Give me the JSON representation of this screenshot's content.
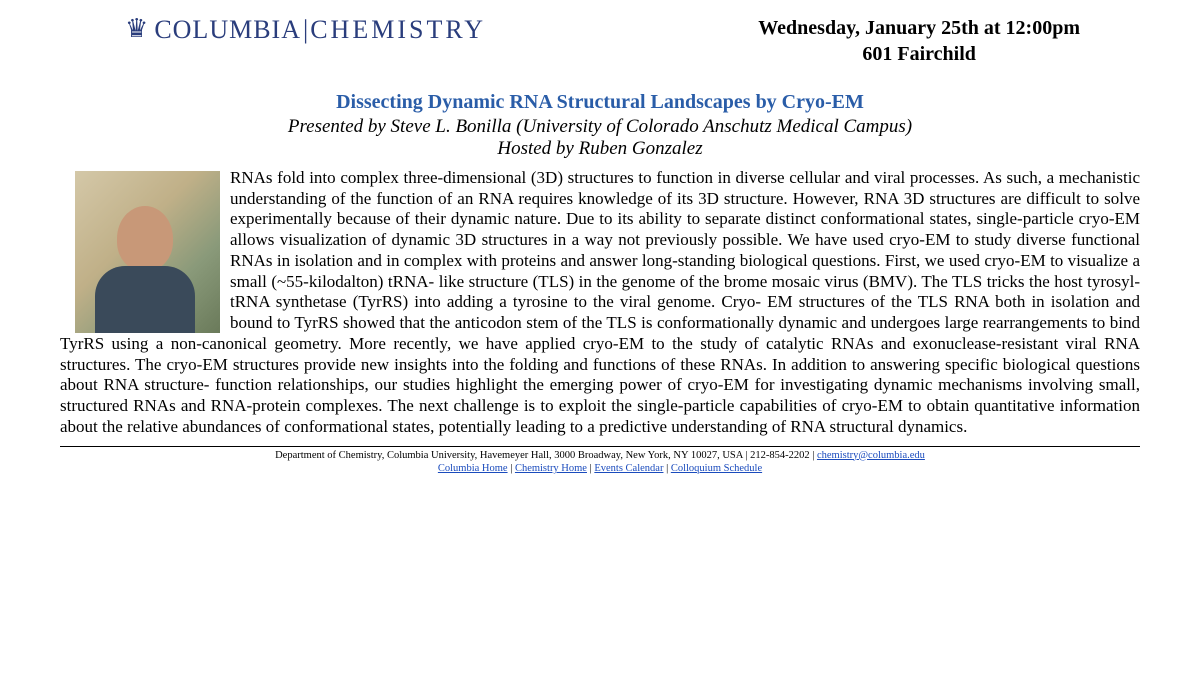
{
  "header": {
    "logo_part1": "COLUMBIA",
    "logo_part2": "CHEMISTRY",
    "date_line": "Wednesday, January 25th at 12:00pm",
    "room_line": "601 Fairchild"
  },
  "talk": {
    "title": "Dissecting Dynamic RNA Structural Landscapes by Cryo-EM",
    "presenter": "Presented by Steve L. Bonilla (University of Colorado Anschutz Medical Campus)",
    "host": "Hosted by Ruben Gonzalez",
    "abstract": "RNAs fold into complex three-dimensional (3D) structures to function in diverse cellular and viral processes. As such, a mechanistic understanding of the function of an RNA requires knowledge of its 3D structure. However, RNA 3D structures are difficult to solve experimentally because of their dynamic nature. Due to its ability to separate distinct conformational states, single-particle cryo-EM allows visualization of dynamic 3D structures in a way not previously possible. We have used cryo-EM to study diverse functional RNAs in isolation and in complex with proteins and answer long-standing biological questions. First, we used cryo-EM to visualize a small (~55-kilodalton) tRNA- like structure (TLS) in the genome of the brome mosaic virus (BMV). The TLS tricks the host tyrosyl-tRNA synthetase (TyrRS) into adding a tyrosine to the viral genome. Cryo- EM structures of the TLS RNA both in isolation and bound to TyrRS showed that the anticodon stem of the TLS is conformationally dynamic and undergoes large rearrangements to bind TyrRS using a non-canonical geometry. More recently, we have applied cryo-EM to the study of catalytic RNAs and exonuclease-resistant viral RNA structures. The cryo-EM structures provide new insights into the folding and functions of these RNAs. In addition to answering specific biological questions about RNA structure- function relationships, our studies highlight the emerging power of cryo-EM for investigating dynamic mechanisms involving small, structured RNAs and RNA-protein complexes. The next challenge is to exploit the single-particle capabilities of cryo-EM to obtain quantitative information about the relative abundances of conformational states, potentially leading to a predictive understanding of RNA structural dynamics."
  },
  "footer": {
    "address_prefix": "Department of Chemistry, Columbia University, Havemeyer Hall, 3000 Broadway, New York, NY  10027, USA | 212-854-2202  | ",
    "email": "chemistry@columbia.edu",
    "links": {
      "l1": "Columbia Home",
      "l2": "Chemistry Home",
      "l3": "Events Calendar",
      "l4": "Colloquium Schedule"
    },
    "sep": " | "
  }
}
